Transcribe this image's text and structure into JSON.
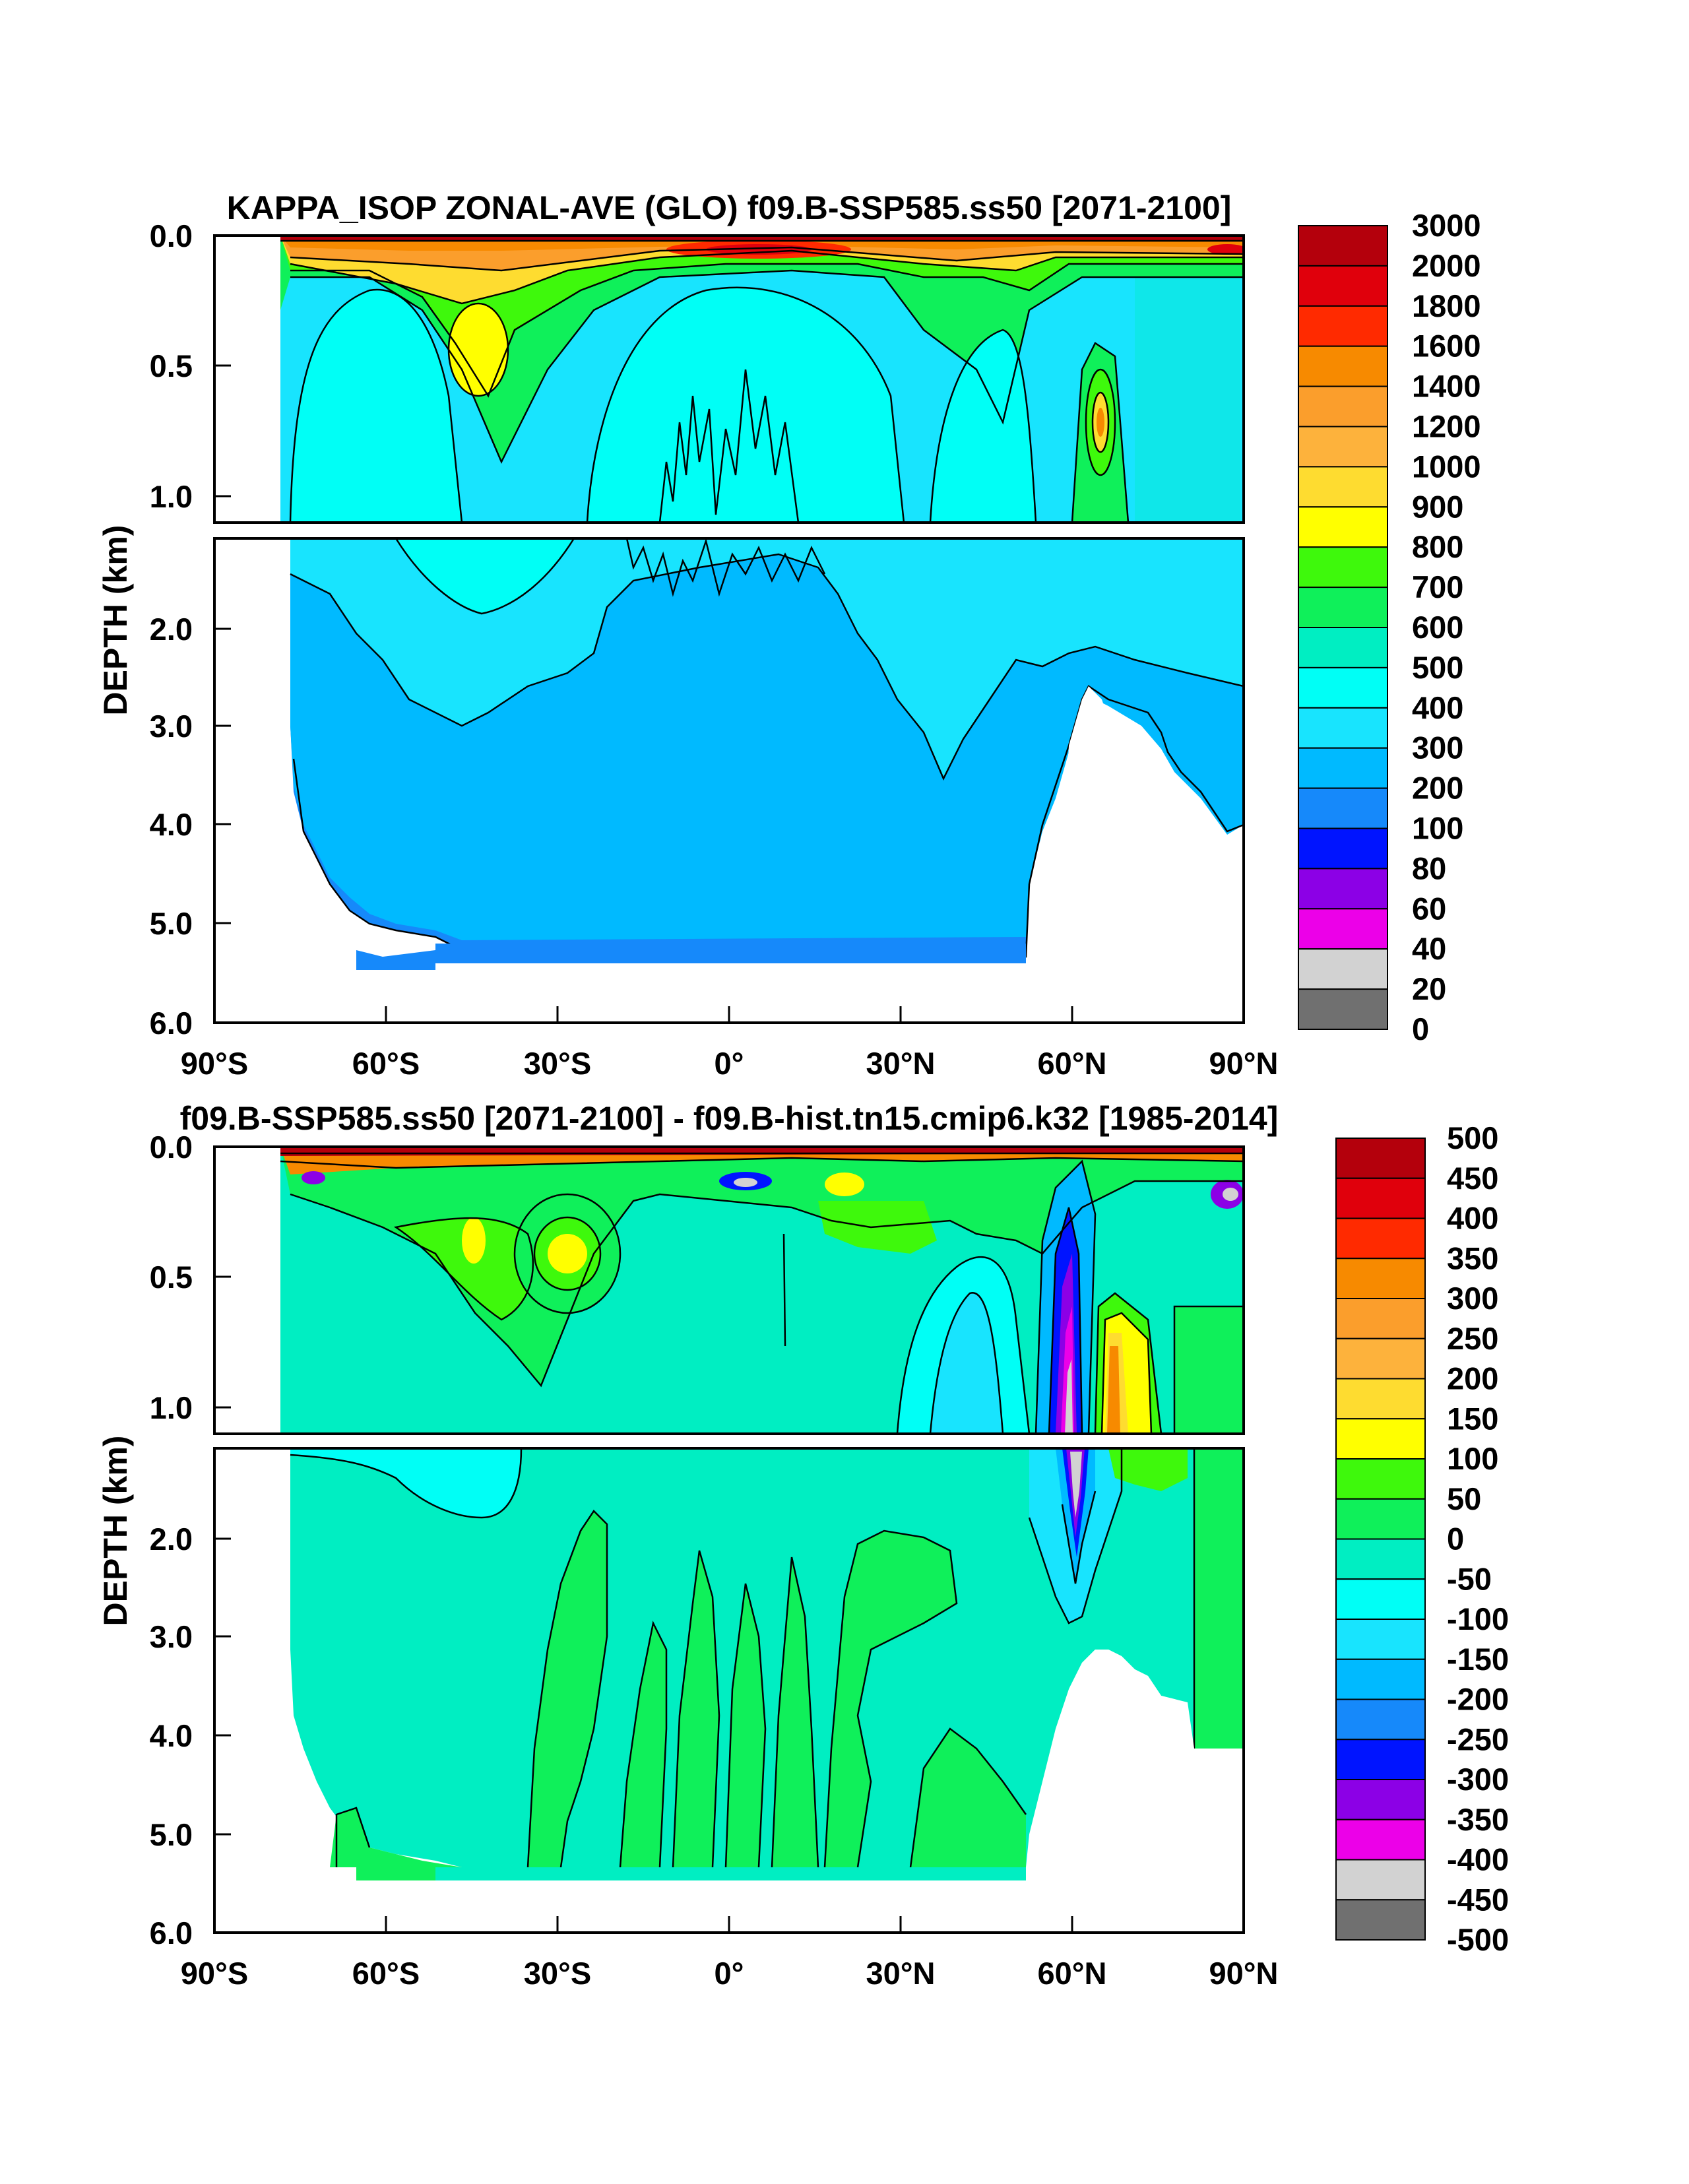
{
  "chart_data": [
    {
      "type": "heatmap",
      "title": "KAPPA_ISOP ZONAL-AVE (GLO) f09.B-SSP585.ss50 [2071-2100]",
      "ylabel": "DEPTH (km)",
      "xlabel": "",
      "x_ticks": [
        "90°S",
        "60°S",
        "30°S",
        "0°",
        "30°N",
        "60°N",
        "90°N"
      ],
      "x_tick_values": [
        -90,
        -60,
        -30,
        0,
        30,
        60,
        90
      ],
      "xlim": [
        -90,
        90
      ],
      "y_ticks_upper": [
        "0.0",
        "0.5",
        "1.0"
      ],
      "y_ticks_upper_values": [
        0.0,
        0.5,
        1.0
      ],
      "y_ticks_lower": [
        "2.0",
        "3.0",
        "4.0",
        "5.0",
        "6.0"
      ],
      "y_ticks_lower_values": [
        2.0,
        3.0,
        4.0,
        5.0,
        6.0
      ],
      "ylim_upper": [
        0.0,
        1.1
      ],
      "ylim_lower": [
        1.1,
        6.0
      ],
      "colorbar": {
        "labels": [
          "3000",
          "2000",
          "1800",
          "1600",
          "1400",
          "1200",
          "1000",
          "900",
          "800",
          "700",
          "600",
          "500",
          "400",
          "300",
          "200",
          "100",
          "80",
          "60",
          "40",
          "20",
          "0"
        ],
        "colors": [
          "#b4000c",
          "#e0000c",
          "#ff2a00",
          "#f78a00",
          "#fb9e2c",
          "#fdb23c",
          "#fedc30",
          "#ffff00",
          "#3ef90c",
          "#0ff05a",
          "#00eec2",
          "#00fff6",
          "#18e4fe",
          "#00baff",
          "#1689fa",
          "#0014ff",
          "#8c00e6",
          "#ec00e8",
          "#d2d2d2",
          "#707070"
        ]
      }
    },
    {
      "type": "heatmap",
      "title": "f09.B-SSP585.ss50 [2071-2100] - f09.B-hist.tn15.cmip6.k32 [1985-2014]",
      "ylabel": "DEPTH (km)",
      "xlabel": "",
      "x_ticks": [
        "90°S",
        "60°S",
        "30°S",
        "0°",
        "30°N",
        "60°N",
        "90°N"
      ],
      "x_tick_values": [
        -90,
        -60,
        -30,
        0,
        30,
        60,
        90
      ],
      "xlim": [
        -90,
        90
      ],
      "y_ticks_upper": [
        "0.0",
        "0.5",
        "1.0"
      ],
      "y_ticks_upper_values": [
        0.0,
        0.5,
        1.0
      ],
      "y_ticks_lower": [
        "2.0",
        "3.0",
        "4.0",
        "5.0",
        "6.0"
      ],
      "y_ticks_lower_values": [
        2.0,
        3.0,
        4.0,
        5.0,
        6.0
      ],
      "ylim_upper": [
        0.0,
        1.1
      ],
      "ylim_lower": [
        1.1,
        6.0
      ],
      "colorbar": {
        "labels": [
          "500",
          "450",
          "400",
          "350",
          "300",
          "250",
          "200",
          "150",
          "100",
          "50",
          "0",
          "-50",
          "-100",
          "-150",
          "-200",
          "-250",
          "-300",
          "-350",
          "-400",
          "-450",
          "-500"
        ],
        "colors": [
          "#b4000c",
          "#e0000c",
          "#ff2a00",
          "#f78a00",
          "#fb9e2c",
          "#fdb23c",
          "#fedc30",
          "#ffff00",
          "#3ef90c",
          "#0ff05a",
          "#00eec2",
          "#00fff6",
          "#18e4fe",
          "#00baff",
          "#1689fa",
          "#0014ff",
          "#8c00e6",
          "#ec00e8",
          "#d2d2d2",
          "#707070"
        ]
      }
    }
  ]
}
